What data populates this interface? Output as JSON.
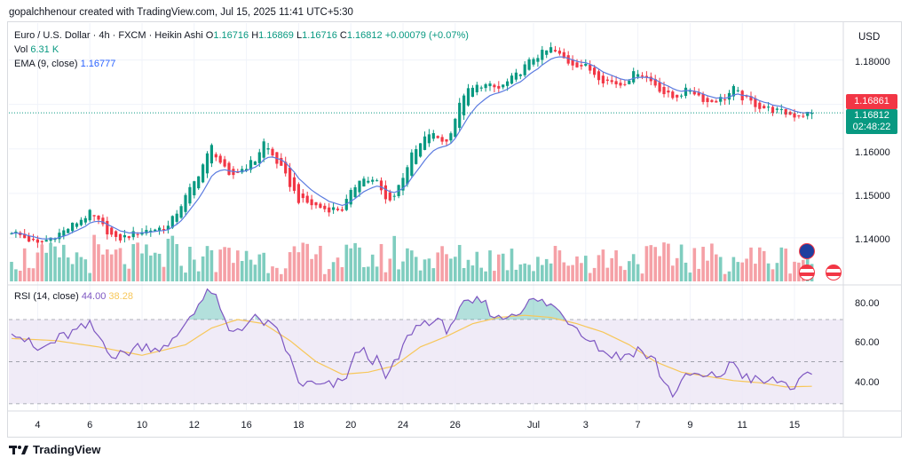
{
  "attribution": "gopalchhenour created with TradingView.com, Jul 15, 2025 11:41 UTC+5:30",
  "legend": {
    "symbol": "Euro / U.S. Dollar · 4h · FXCM · Heikin Ashi",
    "o_label": "O",
    "o_value": "1.16716",
    "h_label": "H",
    "h_value": "1.16869",
    "l_label": "L",
    "l_value": "1.16716",
    "c_label": "C",
    "c_value": "1.16812",
    "change": "+0.00079 (+0.07%)",
    "vol_label": "Vol",
    "vol_value": "6.31 K",
    "ema_label": "EMA (9, close)",
    "ema_value": "1.16777",
    "rsi_label": "RSI (14, close)",
    "rsi_value": "44.00",
    "rsi_ma_value": "38.28"
  },
  "price_axis": {
    "currency": "USD",
    "ticks": [
      "1.18000",
      "1.17000",
      "1.16000",
      "1.15000",
      "1.14000"
    ],
    "tag_red": "1.16861",
    "tag_green": "1.16812",
    "countdown": "02:48:22"
  },
  "rsi_axis": {
    "ticks": [
      "80.00",
      "60.00",
      "40.00"
    ]
  },
  "time_axis": {
    "ticks": [
      "4",
      "6",
      "10",
      "12",
      "16",
      "18",
      "20",
      "24",
      "26",
      "Jul",
      "3",
      "7",
      "9",
      "11",
      "15"
    ]
  },
  "footer": {
    "brand": "TradingView",
    "logo": "tradingview-logo"
  },
  "colors": {
    "bull": "#089981",
    "bear": "#f23645",
    "bull_vol": "#7fcdbf",
    "bear_vol": "#f5a0a6",
    "ema": "#5b7be0",
    "rsi": "#7e57c2",
    "rsi_ma": "#f7c75a",
    "rsi_band": "#ede7f6"
  },
  "chart_data": {
    "type": "candlestick",
    "chart_style": "Heikin Ashi",
    "timeframe": "4h",
    "price_range": [
      1.13,
      1.1875
    ],
    "rsi_range": [
      27,
      86
    ],
    "rsi_levels": [
      70,
      50,
      30
    ],
    "x_ticks": [
      {
        "label": "4",
        "i": 6
      },
      {
        "label": "6",
        "i": 18
      },
      {
        "label": "10",
        "i": 30
      },
      {
        "label": "12",
        "i": 42
      },
      {
        "label": "16",
        "i": 54
      },
      {
        "label": "18",
        "i": 66
      },
      {
        "label": "20",
        "i": 78
      },
      {
        "label": "24",
        "i": 90
      },
      {
        "label": "26",
        "i": 102
      },
      {
        "label": "Jul",
        "i": 120
      },
      {
        "label": "3",
        "i": 132
      },
      {
        "label": "7",
        "i": 144
      },
      {
        "label": "9",
        "i": 156
      },
      {
        "label": "11",
        "i": 168
      },
      {
        "label": "15",
        "i": 180
      }
    ],
    "anchors": [
      [
        0,
        1.1415,
        66
      ],
      [
        6,
        1.1385,
        55
      ],
      [
        12,
        1.1415,
        62
      ],
      [
        18,
        1.1455,
        67
      ],
      [
        24,
        1.1395,
        52
      ],
      [
        30,
        1.1415,
        58
      ],
      [
        36,
        1.1425,
        56
      ],
      [
        42,
        1.1525,
        75
      ],
      [
        46,
        1.1605,
        84
      ],
      [
        50,
        1.1535,
        64
      ],
      [
        56,
        1.1575,
        70
      ],
      [
        58,
        1.1615,
        69
      ],
      [
        62,
        1.1555,
        62
      ],
      [
        66,
        1.1485,
        40
      ],
      [
        72,
        1.1465,
        38
      ],
      [
        76,
        1.1465,
        40
      ],
      [
        80,
        1.1535,
        56
      ],
      [
        84,
        1.1525,
        50
      ],
      [
        86,
        1.1485,
        42
      ],
      [
        88,
        1.1495,
        48
      ],
      [
        92,
        1.1585,
        65
      ],
      [
        96,
        1.1635,
        70
      ],
      [
        100,
        1.1615,
        66
      ],
      [
        104,
        1.1725,
        76
      ],
      [
        108,
        1.1745,
        79
      ],
      [
        112,
        1.1735,
        70
      ],
      [
        116,
        1.1765,
        74
      ],
      [
        120,
        1.1805,
        79
      ],
      [
        124,
        1.1825,
        77
      ],
      [
        128,
        1.1795,
        70
      ],
      [
        132,
        1.1785,
        63
      ],
      [
        136,
        1.1755,
        55
      ],
      [
        140,
        1.1745,
        52
      ],
      [
        144,
        1.1775,
        56
      ],
      [
        148,
        1.1745,
        50
      ],
      [
        150,
        1.1725,
        40
      ],
      [
        152,
        1.1715,
        35
      ],
      [
        156,
        1.1735,
        44
      ],
      [
        160,
        1.1705,
        42
      ],
      [
        164,
        1.1715,
        45
      ],
      [
        166,
        1.1735,
        50
      ],
      [
        168,
        1.1715,
        44
      ],
      [
        172,
        1.1695,
        40
      ],
      [
        176,
        1.1685,
        41
      ],
      [
        180,
        1.1675,
        38
      ],
      [
        184,
        1.1681,
        44
      ]
    ],
    "rsi_ma_anchors": [
      [
        0,
        61
      ],
      [
        10,
        60
      ],
      [
        20,
        57
      ],
      [
        30,
        53
      ],
      [
        40,
        58
      ],
      [
        46,
        66
      ],
      [
        52,
        70
      ],
      [
        58,
        68
      ],
      [
        64,
        60
      ],
      [
        70,
        50
      ],
      [
        76,
        44
      ],
      [
        82,
        45
      ],
      [
        88,
        48
      ],
      [
        94,
        57
      ],
      [
        100,
        62
      ],
      [
        106,
        68
      ],
      [
        112,
        71
      ],
      [
        118,
        72
      ],
      [
        124,
        71
      ],
      [
        130,
        68
      ],
      [
        136,
        64
      ],
      [
        142,
        58
      ],
      [
        148,
        50
      ],
      [
        154,
        45
      ],
      [
        160,
        43
      ],
      [
        166,
        41
      ],
      [
        172,
        40
      ],
      [
        178,
        38
      ],
      [
        184,
        38.3
      ]
    ]
  }
}
